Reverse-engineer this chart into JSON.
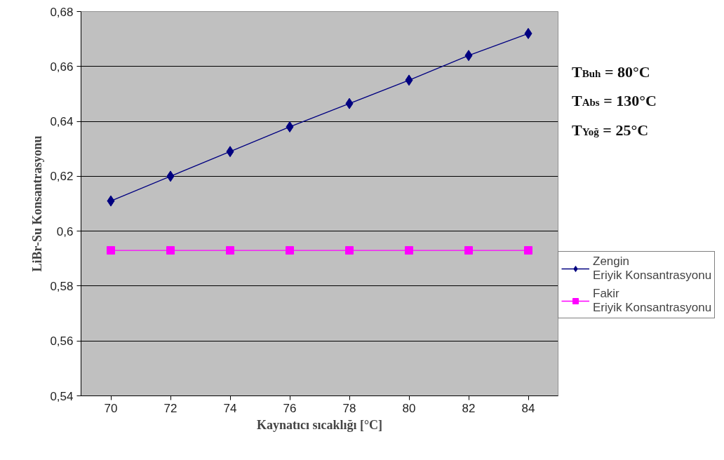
{
  "chart_data": {
    "type": "line",
    "xlabel": "Kaynatıcı sıcaklığı [°C]",
    "ylabel": "LiBr-Su Konsantrasyonu",
    "categories": [
      "70",
      "72",
      "74",
      "76",
      "78",
      "80",
      "82",
      "84"
    ],
    "series": [
      {
        "name": "Zengin Eriyik Konsantrasyonu",
        "color": "#000080",
        "marker": "diamond",
        "values": [
          0.611,
          0.62,
          0.629,
          0.638,
          0.6465,
          0.655,
          0.664,
          0.672
        ]
      },
      {
        "name": "Fakir Eriyik Konsantrasyonu",
        "color": "#ff00ff",
        "marker": "square",
        "values": [
          0.593,
          0.593,
          0.593,
          0.593,
          0.593,
          0.593,
          0.593,
          0.593
        ]
      }
    ],
    "ylim": [
      0.54,
      0.68
    ],
    "yticks": [
      {
        "value": 0.54,
        "label": "0,54"
      },
      {
        "value": 0.56,
        "label": "0,56"
      },
      {
        "value": 0.58,
        "label": "0,58"
      },
      {
        "value": 0.6,
        "label": "0,6"
      },
      {
        "value": 0.62,
        "label": "0,62"
      },
      {
        "value": 0.64,
        "label": "0,64"
      },
      {
        "value": 0.66,
        "label": "0,66"
      },
      {
        "value": 0.68,
        "label": "0,68"
      }
    ],
    "grid": "y",
    "legend": "right",
    "annotations": [
      "T$_{Buh}$ = 80°C",
      "T$_{Abs}$ = 130°C",
      "T$_{Yoğ}$ = 25°C"
    ]
  }
}
